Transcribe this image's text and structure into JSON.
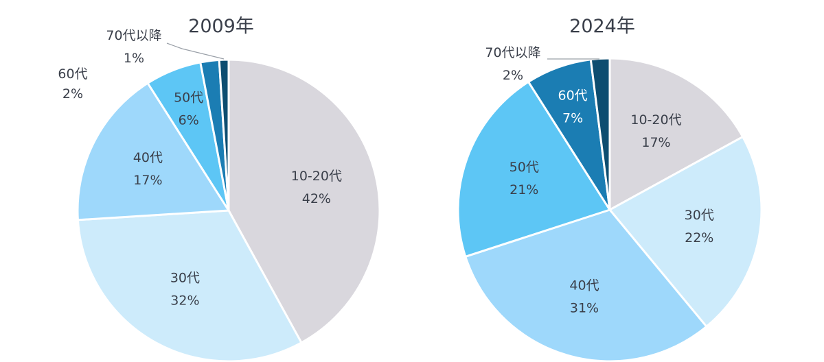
{
  "chart_data": [
    {
      "type": "pie",
      "title": "2009年",
      "categories": [
        "10-20代",
        "30代",
        "40代",
        "50代",
        "60代",
        "70代以降"
      ],
      "values": [
        42,
        32,
        17,
        6,
        2,
        1
      ],
      "value_labels": [
        "42%",
        "32%",
        "17%",
        "6%",
        "2%",
        "1%"
      ],
      "colors": [
        "#d9d7dd",
        "#cdebfb",
        "#9ed8fb",
        "#5dc6f5",
        "#1b7db3",
        "#0d4d70"
      ],
      "legend": "none"
    },
    {
      "type": "pie",
      "title": "2024年",
      "categories": [
        "10-20代",
        "30代",
        "40代",
        "50代",
        "60代",
        "70代以降"
      ],
      "values": [
        17,
        22,
        31,
        21,
        7,
        2
      ],
      "value_labels": [
        "17%",
        "22%",
        "31%",
        "21%",
        "7%",
        "2%"
      ],
      "colors": [
        "#d9d7dd",
        "#cdebfb",
        "#9ed8fb",
        "#5dc6f5",
        "#1b7db3",
        "#0d4d70"
      ],
      "legend": "none"
    }
  ]
}
